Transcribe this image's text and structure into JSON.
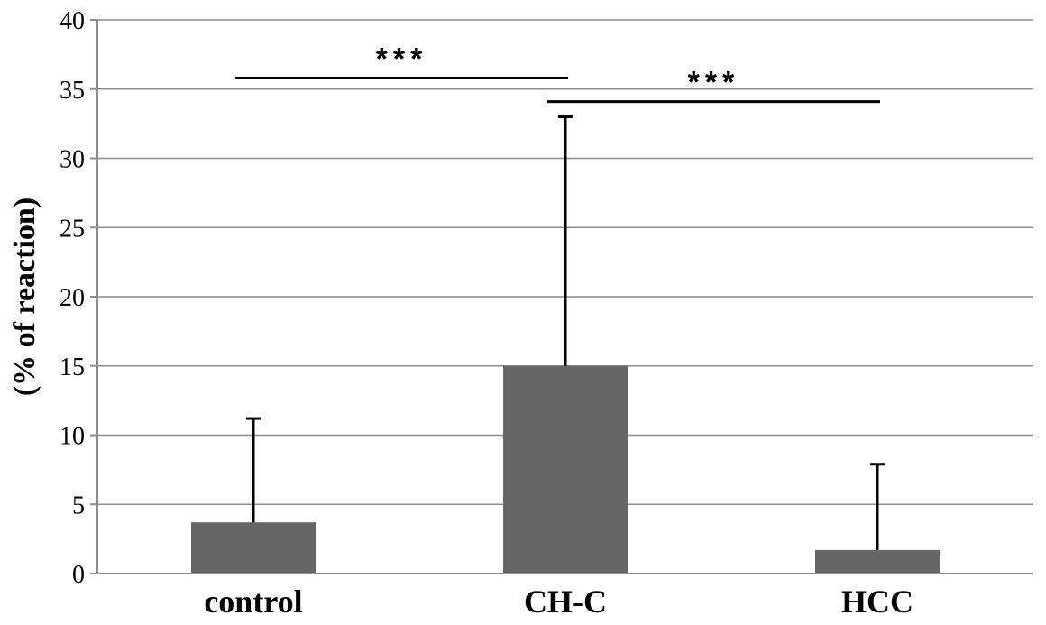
{
  "chart_data": {
    "type": "bar",
    "categories": [
      "control",
      "CH-C",
      "HCC"
    ],
    "values": [
      3.7,
      15.0,
      1.7
    ],
    "error_upper": [
      11.2,
      33.0,
      7.9
    ],
    "ylabel": "(% of reaction)",
    "xlabel": "",
    "ylim": [
      0,
      40
    ],
    "yticks": [
      0,
      5,
      10,
      15,
      20,
      25,
      30,
      35,
      40
    ],
    "grid": true,
    "bar_color": "#666666",
    "significance": [
      {
        "from": "control",
        "to": "CH-C",
        "level": 35.8,
        "label": "***"
      },
      {
        "from": "CH-C",
        "to": "HCC",
        "level": 34.1,
        "label": "***"
      }
    ]
  }
}
